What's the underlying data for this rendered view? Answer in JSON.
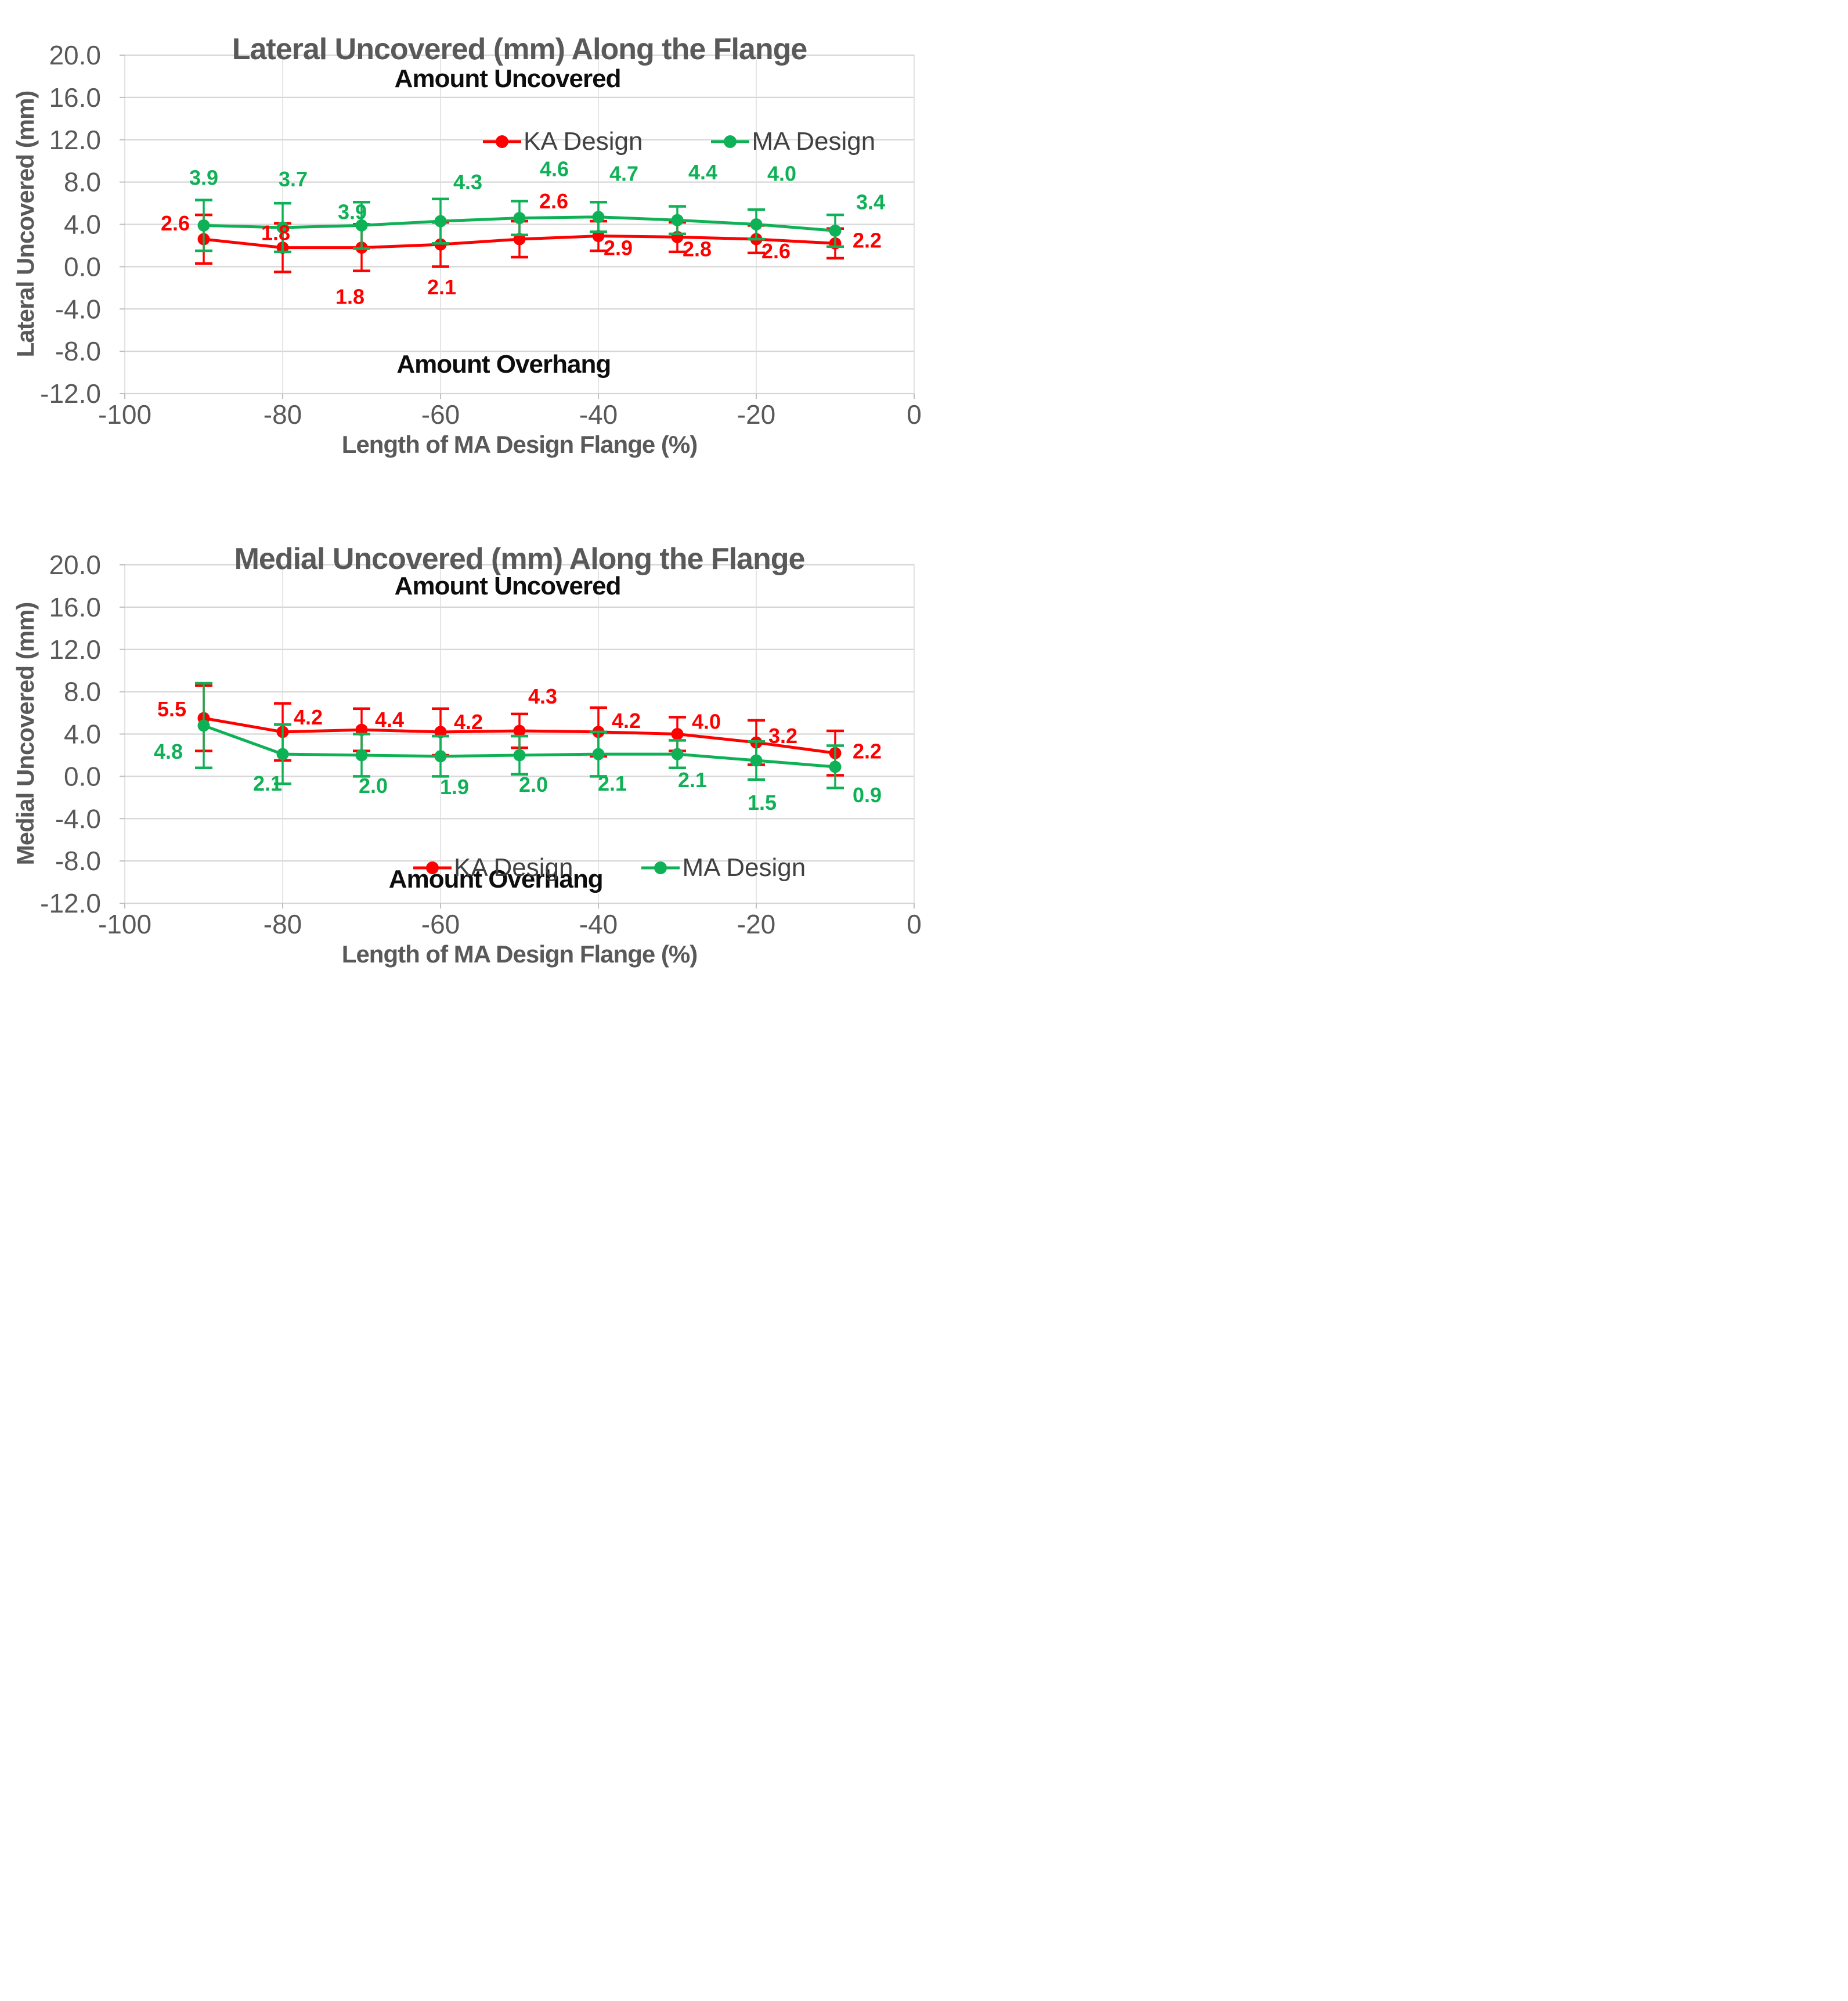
{
  "colors": {
    "ka_red": "#FF0000",
    "ma_green": "#0FB156",
    "grid": "#D6D6D6",
    "grid_vertical": "#DCDCDC",
    "axis_text": "#595959",
    "legend_text": "#404040",
    "annotation_text": "#0D0D0D",
    "background": "#FFFFFF"
  },
  "chart_data": [
    {
      "type": "line",
      "title": "Lateral Uncovered (mm) Along the Flange",
      "xlabel": "Length of MA Design Flange (%)",
      "ylabel": "Lateral Uncovered (mm)",
      "xlim": [
        -100,
        0
      ],
      "ylim": [
        -12,
        20
      ],
      "x_ticks": [
        -100,
        -80,
        -60,
        -40,
        -20,
        0
      ],
      "y_ticks": [
        20,
        16,
        12,
        8,
        4,
        0,
        -4,
        -8,
        -12
      ],
      "y_tick_labels": [
        "20.0",
        "16.0",
        "12.0",
        "8.0",
        "4.0",
        "0.0",
        "-4.0",
        "-8.0",
        "-12.0"
      ],
      "grid": true,
      "legend_position": "inside-upper-middle",
      "annotations": [
        {
          "text": "Amount Uncovered",
          "x": -51.5,
          "y": 17.75
        },
        {
          "text": "Amount Overhang",
          "x": -52,
          "y": -9.25
        }
      ],
      "x": [
        -90,
        -80,
        -70,
        -60,
        -50,
        -40,
        -30,
        -20,
        -10
      ],
      "series": [
        {
          "name": "KA Design",
          "color": "#FF0000",
          "values": [
            2.6,
            1.8,
            1.8,
            2.1,
            2.6,
            2.9,
            2.8,
            2.6,
            2.2
          ],
          "errors_est": [
            2.3,
            2.3,
            2.2,
            2.1,
            1.7,
            1.4,
            1.4,
            1.3,
            1.4
          ],
          "point_labels": [
            "2.6",
            "1.8",
            "1.8",
            "2.1",
            "2.6",
            "2.9",
            "2.8",
            "2.6",
            "2.2"
          ]
        },
        {
          "name": "MA Design",
          "color": "#0FB156",
          "values": [
            3.9,
            3.7,
            3.9,
            4.3,
            4.6,
            4.7,
            4.4,
            4.0,
            3.4
          ],
          "errors_est": [
            2.4,
            2.3,
            2.2,
            2.1,
            1.6,
            1.4,
            1.3,
            1.4,
            1.5
          ],
          "point_labels": [
            "3.9",
            "3.7",
            "3.9",
            "4.3",
            "4.6",
            "4.7",
            "4.4",
            "4.0",
            "3.4"
          ]
        }
      ]
    },
    {
      "type": "line",
      "title": "Medial Uncovered (mm) Along the Flange",
      "xlabel": "Length of MA Design Flange (%)",
      "ylabel": "Medial Uncovered (mm)",
      "xlim": [
        -100,
        0
      ],
      "ylim": [
        -12,
        20
      ],
      "x_ticks": [
        -100,
        -80,
        -60,
        -40,
        -20,
        0
      ],
      "y_ticks": [
        20,
        16,
        12,
        8,
        4,
        0,
        -4,
        -8,
        -12
      ],
      "y_tick_labels": [
        "20.0",
        "16.0",
        "12.0",
        "8.0",
        "4.0",
        "0.0",
        "-4.0",
        "-8.0",
        "-12.0"
      ],
      "grid": true,
      "legend_position": "inside-lower-middle",
      "annotations": [
        {
          "text": "Amount Uncovered",
          "x": -51.5,
          "y": 17.95
        },
        {
          "text": "Amount Overhang",
          "x": -53,
          "y": -9.75
        }
      ],
      "x": [
        -90,
        -80,
        -70,
        -60,
        -50,
        -40,
        -30,
        -20,
        -10
      ],
      "series": [
        {
          "name": "KA Design",
          "color": "#FF0000",
          "values": [
            5.5,
            4.2,
            4.4,
            4.2,
            4.3,
            4.2,
            4.0,
            3.2,
            2.2
          ],
          "errors_est": [
            3.1,
            2.7,
            2.0,
            2.2,
            1.6,
            2.3,
            1.6,
            2.1,
            2.1
          ],
          "point_labels": [
            "5.5",
            "4.2",
            "4.4",
            "4.2",
            "4.3",
            "4.2",
            "4.0",
            "3.2",
            "2.2"
          ]
        },
        {
          "name": "MA Design",
          "color": "#0FB156",
          "values": [
            4.8,
            2.1,
            2.0,
            1.9,
            2.0,
            2.1,
            2.1,
            1.5,
            0.9
          ],
          "errors_est": [
            4.0,
            2.8,
            2.0,
            1.9,
            1.8,
            2.1,
            1.3,
            1.8,
            2.0
          ],
          "point_labels": [
            "4.8",
            "2.1",
            "2.0",
            "1.9",
            "2.0",
            "2.1",
            "2.1",
            "1.5",
            "0.9"
          ]
        }
      ]
    }
  ]
}
